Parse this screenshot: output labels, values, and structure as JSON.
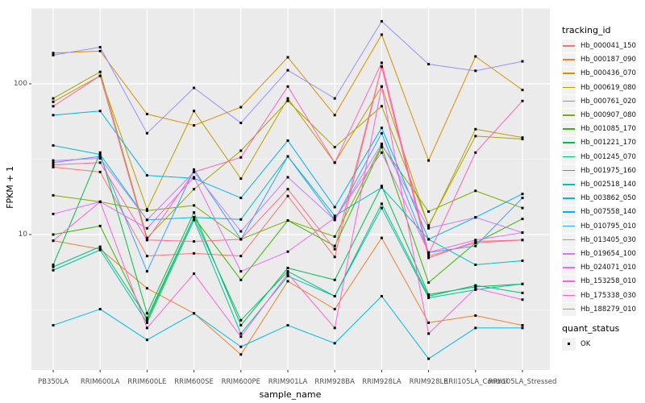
{
  "chart_data": {
    "type": "line",
    "title": "",
    "xlabel": "sample_name",
    "ylabel": "FPKM + 1",
    "y_scale": "log10",
    "y_ticks": [
      "100",
      "10"
    ],
    "y_tick_values": [
      100,
      10
    ],
    "y_minor_gridlines": [
      3.162,
      31.62,
      316.2
    ],
    "ylim": [
      1.3,
      320
    ],
    "grid": true,
    "panel_color": "#EBEBEB",
    "gridline_color": "#FFFFFF",
    "point_marker": "black-square",
    "categories": [
      "PB350LA",
      "RRIM600LA",
      "RRIM600LE",
      "RRIM600SE",
      "RRIM600PE",
      "RRIM901LA",
      "RRIM928BA",
      "RRIM928LA",
      "RRIM928LE",
      "RRII105LA_Control",
      "RRII105LA_Stressed"
    ],
    "legend": {
      "title": "tracking_id",
      "position": "right"
    },
    "quant_status": {
      "title": "quant_status",
      "entries": [
        "OK"
      ]
    },
    "series": [
      {
        "name": "Hb_000041_150",
        "color": "#F8766D",
        "values": [
          28,
          26,
          7.2,
          7.5,
          7.2,
          18,
          7.1,
          130,
          7.2,
          8.8,
          9.2
        ]
      },
      {
        "name": "Hb_000187_090",
        "color": "#EA8331",
        "values": [
          9.1,
          8.0,
          4.4,
          3.0,
          1.6,
          4.9,
          3.2,
          9.5,
          2.6,
          2.9,
          2.5
        ]
      },
      {
        "name": "Hb_000436_070",
        "color": "#D89000",
        "values": [
          160,
          165,
          63,
          53,
          70,
          150,
          62,
          212,
          31,
          152,
          91
        ]
      },
      {
        "name": "Hb_000619_080",
        "color": "#C09B00",
        "values": [
          76,
          113,
          14.7,
          66,
          23.5,
          80,
          30,
          96,
          11.3,
          50,
          44
        ]
      },
      {
        "name": "Hb_000761_020",
        "color": "#A3A500",
        "values": [
          80,
          120,
          9.5,
          20,
          36,
          77,
          38,
          71,
          11.5,
          45,
          43
        ]
      },
      {
        "name": "Hb_000907_080",
        "color": "#7CAE00",
        "values": [
          18.2,
          16.5,
          14.4,
          15.6,
          9.3,
          12.4,
          9.7,
          39,
          14.2,
          19.5,
          15
        ]
      },
      {
        "name": "Hb_001085_170",
        "color": "#39B600",
        "values": [
          10,
          11.4,
          2.7,
          13,
          5.0,
          12.4,
          8.4,
          38,
          4.8,
          8.8,
          12.7
        ]
      },
      {
        "name": "Hb_001221_170",
        "color": "#00BB4E",
        "values": [
          6.3,
          35,
          3.0,
          14,
          2.5,
          6.0,
          5.0,
          21,
          4.0,
          4.5,
          4.7
        ]
      },
      {
        "name": "Hb_001245_070",
        "color": "#00BF7D",
        "values": [
          6.1,
          8.3,
          2.8,
          13,
          2.7,
          5.7,
          3.9,
          16,
          3.9,
          4.6,
          4.1
        ]
      },
      {
        "name": "Hb_001975_160",
        "color": "#00C1A3",
        "values": [
          5.8,
          7.9,
          2.6,
          12.5,
          2.2,
          5.3,
          3.9,
          15,
          3.8,
          4.3,
          4.7
        ]
      },
      {
        "name": "Hb_002518_140",
        "color": "#00BFC4",
        "values": [
          39,
          34,
          12.5,
          13,
          12.6,
          33,
          13.3,
          20.5,
          9.3,
          6.3,
          6.7
        ]
      },
      {
        "name": "Hb_003862_050",
        "color": "#00BAE0",
        "values": [
          2.5,
          3.2,
          2.0,
          3.0,
          1.8,
          2.5,
          1.9,
          3.9,
          1.5,
          2.4,
          2.4
        ]
      },
      {
        "name": "Hb_007558_140",
        "color": "#00B0F6",
        "values": [
          62,
          66,
          24.7,
          23.6,
          17.5,
          42,
          15.2,
          51,
          9.3,
          13,
          18.6
        ]
      },
      {
        "name": "Hb_010795_010",
        "color": "#35A2FF",
        "values": [
          30,
          33,
          5.7,
          27,
          9.3,
          33,
          12.5,
          47,
          7.6,
          8.4,
          17.5
        ]
      },
      {
        "name": "Hb_013405_030",
        "color": "#9590FF",
        "values": [
          155,
          175,
          47,
          94,
          55,
          123,
          80,
          260,
          135,
          122,
          141
        ]
      },
      {
        "name": "Hb_019654_100",
        "color": "#C77CFF",
        "values": [
          31,
          32,
          12.5,
          26,
          10.5,
          24,
          12.5,
          40,
          11,
          13,
          10.3
        ]
      },
      {
        "name": "Hb_024071_010",
        "color": "#E76BF3",
        "values": [
          13.7,
          16.5,
          11,
          24,
          5.7,
          7.7,
          12.9,
          35,
          7.6,
          9.2,
          10.3
        ]
      },
      {
        "name": "Hb_153258_010",
        "color": "#FA62DB",
        "values": [
          9.1,
          16.5,
          2.4,
          5.5,
          2.1,
          5.5,
          2.4,
          96,
          2.2,
          4.4,
          3.7
        ]
      },
      {
        "name": "Hb_175338_030",
        "color": "#FF62BC",
        "values": [
          71,
          113,
          9.2,
          26,
          32.5,
          96,
          30,
          138,
          7.4,
          35,
          77
        ]
      },
      {
        "name": "Hb_188279_010",
        "color": "#FF6A98",
        "values": [
          29,
          30,
          9.2,
          9.0,
          9.3,
          20,
          8.0,
          130,
          7.0,
          9.0,
          9.2
        ]
      }
    ]
  }
}
